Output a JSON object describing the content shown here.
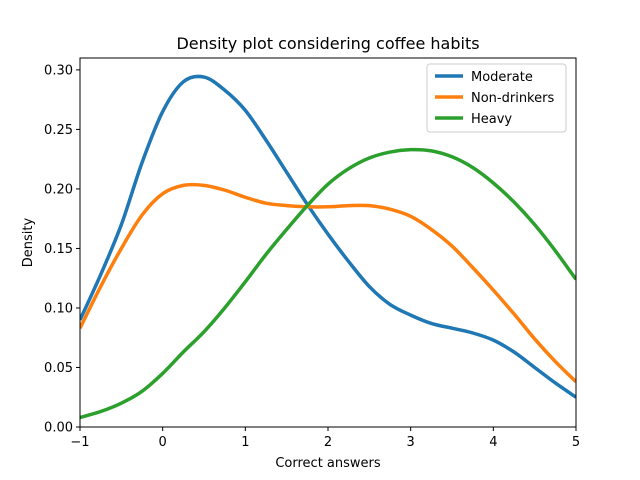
{
  "chart_data": {
    "type": "line",
    "title": "Density plot considering coffee habits",
    "xlabel": "Correct answers",
    "ylabel": "Density",
    "xlim": [
      -1,
      5
    ],
    "ylim": [
      0,
      0.31
    ],
    "xticks": [
      -1,
      0,
      1,
      2,
      3,
      4,
      5
    ],
    "xtick_labels": [
      "−1",
      "0",
      "1",
      "2",
      "3",
      "4",
      "5"
    ],
    "yticks": [
      0.0,
      0.05,
      0.1,
      0.15,
      0.2,
      0.25,
      0.3
    ],
    "ytick_labels": [
      "0.00",
      "0.05",
      "0.10",
      "0.15",
      "0.20",
      "0.25",
      "0.30"
    ],
    "grid": false,
    "legend_position": "top-right",
    "series": [
      {
        "name": "Moderate",
        "color": "#1f77b4",
        "x": [
          -1,
          -0.75,
          -0.5,
          -0.25,
          0,
          0.25,
          0.5,
          0.75,
          1,
          1.25,
          1.5,
          1.75,
          2,
          2.25,
          2.5,
          2.75,
          3,
          3.25,
          3.5,
          3.75,
          4,
          4.25,
          4.5,
          4.75,
          5
        ],
        "y": [
          0.09,
          0.128,
          0.17,
          0.222,
          0.265,
          0.29,
          0.294,
          0.283,
          0.266,
          0.241,
          0.214,
          0.187,
          0.162,
          0.139,
          0.118,
          0.103,
          0.094,
          0.087,
          0.083,
          0.079,
          0.073,
          0.063,
          0.05,
          0.037,
          0.025
        ]
      },
      {
        "name": "Non-drinkers",
        "color": "#ff7f0e",
        "x": [
          -1,
          -0.75,
          -0.5,
          -0.25,
          0,
          0.25,
          0.5,
          0.75,
          1,
          1.25,
          1.5,
          1.75,
          2,
          2.25,
          2.5,
          2.75,
          3,
          3.25,
          3.5,
          3.75,
          4,
          4.25,
          4.5,
          4.75,
          5
        ],
        "y": [
          0.083,
          0.118,
          0.15,
          0.178,
          0.196,
          0.203,
          0.203,
          0.199,
          0.193,
          0.188,
          0.186,
          0.185,
          0.185,
          0.186,
          0.186,
          0.183,
          0.177,
          0.166,
          0.152,
          0.134,
          0.115,
          0.095,
          0.074,
          0.055,
          0.038
        ]
      },
      {
        "name": "Heavy",
        "color": "#2ca02c",
        "x": [
          -1,
          -0.75,
          -0.5,
          -0.25,
          0,
          0.25,
          0.5,
          0.75,
          1,
          1.25,
          1.5,
          1.75,
          2,
          2.25,
          2.5,
          2.75,
          3,
          3.25,
          3.5,
          3.75,
          4,
          4.25,
          4.5,
          4.75,
          5
        ],
        "y": [
          0.008,
          0.013,
          0.02,
          0.03,
          0.045,
          0.063,
          0.08,
          0.1,
          0.122,
          0.145,
          0.166,
          0.186,
          0.204,
          0.217,
          0.226,
          0.231,
          0.233,
          0.232,
          0.227,
          0.218,
          0.205,
          0.189,
          0.17,
          0.148,
          0.124
        ]
      }
    ]
  }
}
